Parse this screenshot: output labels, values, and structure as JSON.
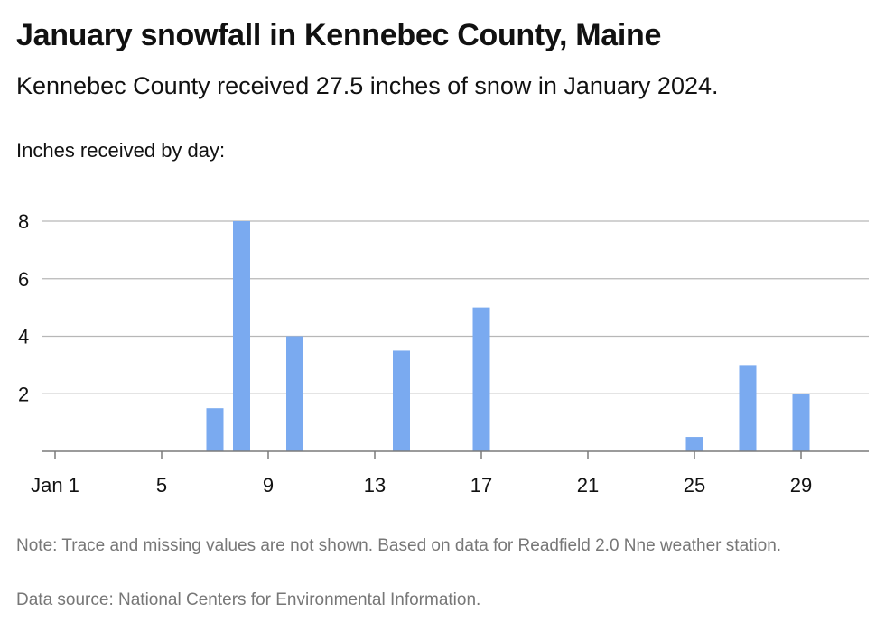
{
  "title": "January snowfall in Kennebec County, Maine",
  "subtitle": "Kennebec County received 27.5 inches of snow in January 2024.",
  "note": "Note: Trace and missing values are not shown. Based on data for Readfield 2.0 Nne weather station.",
  "source": "Data source: National Centers for Environmental Information.",
  "colors": {
    "bar": "#7aaaf0",
    "grid": "#b7b7b7",
    "axis": "#7a7a7a"
  },
  "chart_data": {
    "type": "bar",
    "ylabel": "Inches received by day:",
    "xlabel": "",
    "x": [
      1,
      2,
      3,
      4,
      5,
      6,
      7,
      8,
      9,
      10,
      11,
      12,
      13,
      14,
      15,
      16,
      17,
      18,
      19,
      20,
      21,
      22,
      23,
      24,
      25,
      26,
      27,
      28,
      29,
      30,
      31
    ],
    "values": [
      0,
      0,
      0,
      0,
      0,
      0,
      1.5,
      8,
      0,
      4,
      0,
      0,
      0,
      3.5,
      0,
      0,
      5,
      0,
      0,
      0,
      0,
      0,
      0,
      0,
      0.5,
      0,
      3,
      0,
      2,
      0,
      0
    ],
    "x_ticks": [
      1,
      5,
      9,
      13,
      17,
      21,
      25,
      29
    ],
    "x_tick_labels": [
      "Jan 1",
      "5",
      "9",
      "13",
      "17",
      "21",
      "25",
      "29"
    ],
    "y_ticks": [
      2,
      4,
      6,
      8
    ],
    "ylim": [
      0,
      8
    ],
    "grid": true
  }
}
